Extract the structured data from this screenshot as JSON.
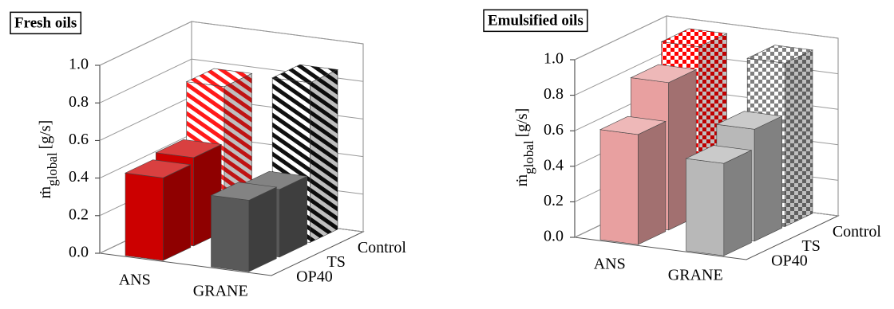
{
  "chart_data": [
    {
      "type": "bar3d",
      "title": "Fresh oils",
      "y_label": {
        "symbol": "ṁ",
        "subscript": "global",
        "unit": "[g/s]"
      },
      "categories": [
        "ANS",
        "GRANE"
      ],
      "category_colors": [
        "#cc0000",
        "#595959"
      ],
      "series": [
        {
          "name": "OP40",
          "values": [
            0.44,
            0.38
          ]
        },
        {
          "name": "TS",
          "values": [
            0.47,
            0.36
          ]
        },
        {
          "name": "Control",
          "values": [
            0.77,
            0.85
          ],
          "pattern": "stripes",
          "colors": [
            "#ff1a1a",
            "#111111"
          ]
        }
      ],
      "ylim": [
        0,
        1
      ],
      "yticks": [
        {
          "value": 0,
          "label": "0.0"
        },
        0.2,
        0.4,
        0.6,
        0.8,
        {
          "value": 1,
          "label": "1.0"
        }
      ],
      "grid": true
    },
    {
      "type": "bar3d",
      "title": "Emulsified oils",
      "y_label": {
        "symbol": "ṁ",
        "subscript": "global",
        "unit": "[g/s]"
      },
      "categories": [
        "ANS",
        "GRANE"
      ],
      "category_colors": [
        "#e8a0a0",
        "#b8b8b8"
      ],
      "series": [
        {
          "name": "OP40",
          "values": [
            0.62,
            0.52
          ]
        },
        {
          "name": "TS",
          "values": [
            0.83,
            0.63
          ]
        },
        {
          "name": "Control",
          "values": [
            0.95,
            0.92
          ],
          "pattern": "checker",
          "colors": [
            "#ff0000",
            "#808080"
          ]
        }
      ],
      "ylim": [
        0,
        1
      ],
      "yticks": [
        {
          "value": 0,
          "label": "0.0"
        },
        0.2,
        0.4,
        0.6,
        0.8,
        {
          "value": 1,
          "label": "1.0"
        }
      ],
      "grid": true
    }
  ]
}
